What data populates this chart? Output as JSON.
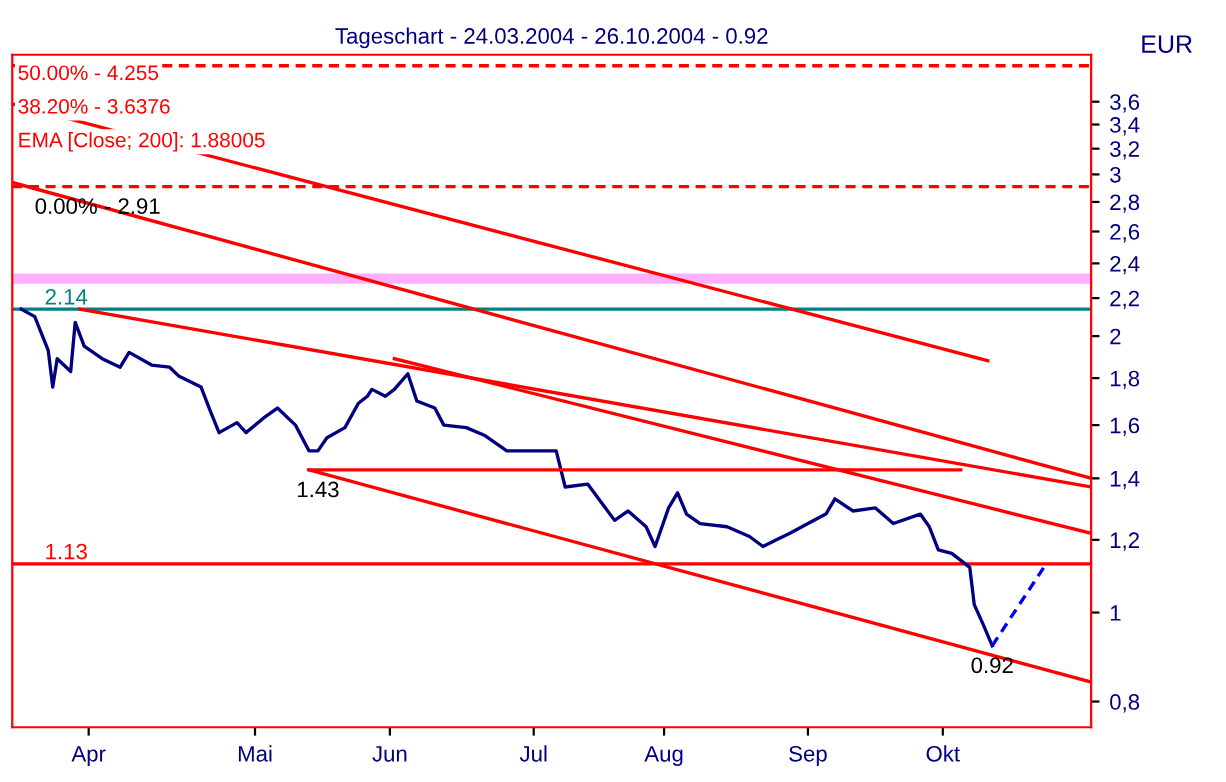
{
  "chart_data": {
    "type": "line",
    "title": "Tageschart - 24.03.2004 - 26.10.2004 - 0.92",
    "ylabel": "EUR",
    "log": "y",
    "grid": false,
    "legend": false,
    "marker": "none",
    "xlim": [
      "2004-03-22",
      "2004-11-17"
    ],
    "xticks": [
      {
        "value": "2004-04-08",
        "label": "Apr"
      },
      {
        "value": "2004-05-15",
        "label": "Mai"
      },
      {
        "value": "2004-06-14",
        "label": "Jun"
      },
      {
        "value": "2004-07-16",
        "label": "Jul"
      },
      {
        "value": "2004-08-14",
        "label": "Aug"
      },
      {
        "value": "2004-09-15",
        "label": "Sep"
      },
      {
        "value": "2004-10-15",
        "label": "Okt"
      }
    ],
    "ylim": [
      0.75,
      4.05
    ],
    "yticks": [
      {
        "value": 0.8,
        "label": "0,8"
      },
      {
        "value": 1,
        "label": "1"
      },
      {
        "value": 1.2,
        "label": "1,2"
      },
      {
        "value": 1.4,
        "label": "1,4"
      },
      {
        "value": 1.6,
        "label": "1,6"
      },
      {
        "value": 1.8,
        "label": "1,8"
      },
      {
        "value": 2,
        "label": "2"
      },
      {
        "value": 2.2,
        "label": "2,2"
      },
      {
        "value": 2.4,
        "label": "2,4"
      },
      {
        "value": 2.6,
        "label": "2,6"
      },
      {
        "value": 2.8,
        "label": "2,8"
      },
      {
        "value": 3,
        "label": "3"
      },
      {
        "value": 3.2,
        "label": "3,2"
      },
      {
        "value": 3.4,
        "label": "3,4"
      },
      {
        "value": 3.6,
        "label": "3,6"
      }
    ],
    "series": [
      {
        "color": "#000080",
        "x": [
          "2004-03-24",
          "2004-03-27",
          "2004-03-30",
          "2004-03-31",
          "2004-04-01",
          "2004-04-04",
          "2004-04-05",
          "2004-04-07",
          "2004-04-11",
          "2004-04-15",
          "2004-04-17",
          "2004-04-22",
          "2004-04-26",
          "2004-04-28",
          "2004-05-03",
          "2004-05-05",
          "2004-05-07",
          "2004-05-11",
          "2004-05-13",
          "2004-05-17",
          "2004-05-20",
          "2004-05-24",
          "2004-05-27",
          "2004-05-29",
          "2004-05-31",
          "2004-06-04",
          "2004-06-07",
          "2004-06-09",
          "2004-06-10",
          "2004-06-13",
          "2004-06-15",
          "2004-06-18",
          "2004-06-20",
          "2004-06-24",
          "2004-06-26",
          "2004-07-01",
          "2004-07-05",
          "2004-07-10",
          "2004-07-16",
          "2004-07-21",
          "2004-07-23",
          "2004-07-28",
          "2004-08-03",
          "2004-08-06",
          "2004-08-10",
          "2004-08-12",
          "2004-08-15",
          "2004-08-17",
          "2004-08-19",
          "2004-08-22",
          "2004-08-28",
          "2004-09-02",
          "2004-09-05",
          "2004-09-08",
          "2004-09-11",
          "2004-09-15",
          "2004-09-19",
          "2004-09-21",
          "2004-09-25",
          "2004-09-30",
          "2004-10-04",
          "2004-10-10",
          "2004-10-12",
          "2004-10-14",
          "2004-10-17",
          "2004-10-21",
          "2004-10-22",
          "2004-10-24",
          "2004-10-26"
        ],
        "values": [
          2.14,
          2.1,
          1.93,
          1.76,
          1.89,
          1.83,
          2.07,
          1.95,
          1.89,
          1.85,
          1.92,
          1.86,
          1.85,
          1.81,
          1.76,
          1.66,
          1.57,
          1.61,
          1.57,
          1.63,
          1.67,
          1.6,
          1.5,
          1.5,
          1.55,
          1.59,
          1.69,
          1.72,
          1.75,
          1.72,
          1.75,
          1.82,
          1.7,
          1.67,
          1.6,
          1.59,
          1.56,
          1.5,
          1.5,
          1.5,
          1.37,
          1.38,
          1.26,
          1.29,
          1.24,
          1.18,
          1.3,
          1.35,
          1.28,
          1.25,
          1.24,
          1.21,
          1.18,
          1.2,
          1.22,
          1.25,
          1.28,
          1.33,
          1.29,
          1.3,
          1.25,
          1.28,
          1.24,
          1.17,
          1.16,
          1.12,
          1.02,
          0.97,
          0.92
        ]
      },
      {
        "color": "#ff0000",
        "x": [
          "2004-03-22",
          "2004-10-25"
        ],
        "values": [
          3.58,
          1.88
        ]
      },
      {
        "color": "#ff0000",
        "x": [
          "2004-03-22",
          "2004-11-17"
        ],
        "values": [
          2.94,
          1.4
        ]
      },
      {
        "color": "#ff0000",
        "x": [
          "2004-04-06",
          "2004-11-17"
        ],
        "values": [
          2.14,
          1.37
        ]
      },
      {
        "color": "#ff0000",
        "x": [
          "2004-06-15",
          "2004-11-17"
        ],
        "values": [
          1.89,
          1.22
        ]
      },
      {
        "color": "#ff0000",
        "x": [
          "2004-05-27",
          "2004-11-17"
        ],
        "values": [
          1.43,
          0.84
        ]
      },
      {
        "color": "#ff0000",
        "x": [
          "2004-05-27",
          "2004-10-19"
        ],
        "values": [
          1.43,
          1.43
        ]
      },
      {
        "color": "#0000ff",
        "line_style": "dashed",
        "x": [
          "2004-10-26",
          "2004-11-07"
        ],
        "values": [
          0.92,
          1.13
        ]
      }
    ],
    "ref_lines": [
      {
        "axis": "y",
        "value": 3.94,
        "color": "#ff0000",
        "line_style": "dashed"
      },
      {
        "axis": "y",
        "value": 2.91,
        "color": "#ff0000",
        "line_style": "dashed"
      },
      {
        "axis": "y",
        "value": 2.14,
        "label": "2.14",
        "color": "#008080",
        "line_style": "solid"
      },
      {
        "axis": "y",
        "value": 1.13,
        "label": "1.13",
        "color": "#ff0000",
        "line_style": "solid"
      }
    ],
    "bands": [
      {
        "axis": "y",
        "from": 2.28,
        "to": 2.34,
        "color": "#ffb0ff"
      }
    ],
    "annotations": [
      "50.00% - 4.255",
      "38.20% - 3.6376",
      "EMA [Close; 200]: 1.88005",
      {
        "text": "0.00% - 2.91",
        "x": "2004-04-10",
        "y": 2.91
      },
      {
        "text": "1.43",
        "x": "2004-05-29",
        "y": 1.43
      },
      {
        "text": "0.92",
        "x": "2004-10-26",
        "y": 0.92
      }
    ]
  }
}
